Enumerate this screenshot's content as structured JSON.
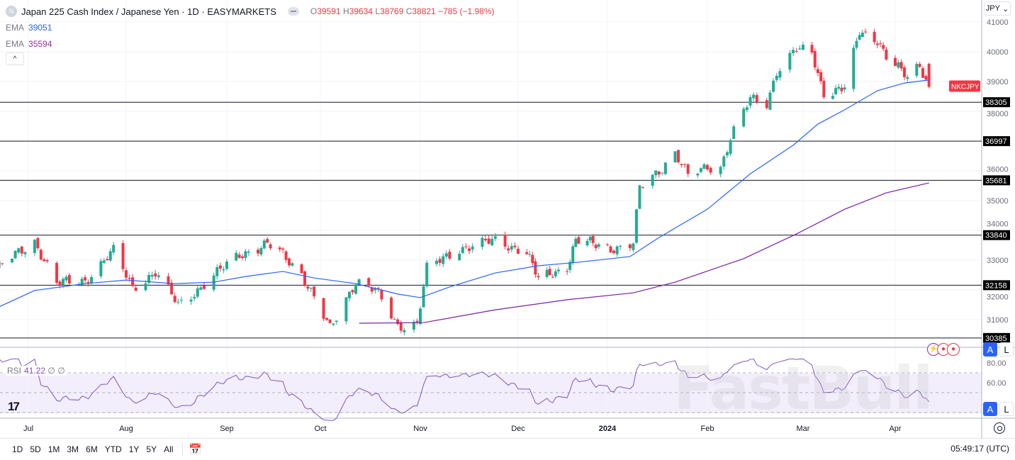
{
  "header": {
    "symbol_badge": "N",
    "title": "Japan 225 Cash Index / Japanese Yen · 1D · EASYMARKETS",
    "ohlc": {
      "o_label": "O",
      "o": "39591",
      "h_label": "H",
      "h": "39634",
      "l_label": "L",
      "l": "38769",
      "c_label": "C",
      "c": "38821",
      "change": "−785 (−1.98%)"
    }
  },
  "indicators": {
    "ema1": {
      "label": "EMA",
      "value": "39051",
      "color": "#2962ff"
    },
    "ema2": {
      "label": "EMA",
      "value": "35594",
      "color": "#7b1fa2"
    },
    "rsi": {
      "label": "RSI",
      "value": "41.22",
      "extra1": "∅",
      "extra2": "∅",
      "color": "#7e57c2"
    }
  },
  "currency_select": "JPY",
  "symbol_tag": "NKCJPY",
  "scale_buttons": {
    "auto": "A",
    "log": "L"
  },
  "watermark": "FastBull",
  "logo": "TV",
  "range_buttons": [
    "1D",
    "5D",
    "1M",
    "3M",
    "6M",
    "YTD",
    "1Y",
    "5Y",
    "All"
  ],
  "clock": "05:49:17 (UTC)",
  "colors": {
    "up": "#22ab94",
    "down": "#f23645",
    "level_line": "#131722"
  },
  "chart_data": {
    "type": "candlestick",
    "symbol": "NKCJPY",
    "interval": "1D",
    "ylim": [
      30300,
      41200
    ],
    "y_ticks": [
      31000,
      32000,
      33000,
      34000,
      35000,
      36000,
      38000,
      39000,
      40000,
      41000
    ],
    "x_ticks": [
      "Jul",
      "Aug",
      "Sep",
      "Oct",
      "Nov",
      "Dec",
      "2024",
      "Feb",
      "Mar",
      "Apr"
    ],
    "grid": true,
    "last_candle": {
      "open": 39591,
      "high": 39634,
      "low": 38769,
      "close": 38821
    },
    "close_path": [
      [
        "2023-06-21",
        32690
      ],
      [
        "2023-07-03",
        33640
      ],
      [
        "2023-07-10",
        32200
      ],
      [
        "2023-07-19",
        32330
      ],
      [
        "2023-07-28",
        33290
      ],
      [
        "2023-08-03",
        32100
      ],
      [
        "2023-08-10",
        32570
      ],
      [
        "2023-08-17",
        31500
      ],
      [
        "2023-08-24",
        32100
      ],
      [
        "2023-09-05",
        33200
      ],
      [
        "2023-09-14",
        33520
      ],
      [
        "2023-09-19",
        33170
      ],
      [
        "2023-09-25",
        32570
      ],
      [
        "2023-10-04",
        30670
      ],
      [
        "2023-10-12",
        32330
      ],
      [
        "2023-10-18",
        31980
      ],
      [
        "2023-10-25",
        30790
      ],
      [
        "2023-10-31",
        30900
      ],
      [
        "2023-11-03",
        32690
      ],
      [
        "2023-11-13",
        33400
      ],
      [
        "2023-11-24",
        33640
      ],
      [
        "2023-12-04",
        33290
      ],
      [
        "2023-12-08",
        32330
      ],
      [
        "2023-12-18",
        32800
      ],
      [
        "2023-12-21",
        33640
      ],
      [
        "2024-01-04",
        33400
      ],
      [
        "2024-01-09",
        33520
      ],
      [
        "2024-01-11",
        35430
      ],
      [
        "2024-01-17",
        36020
      ],
      [
        "2024-01-22",
        36620
      ],
      [
        "2024-01-26",
        35790
      ],
      [
        "2024-02-01",
        36140
      ],
      [
        "2024-02-05",
        36140
      ],
      [
        "2024-02-08",
        37100
      ],
      [
        "2024-02-14",
        38400
      ],
      [
        "2024-02-19",
        38290
      ],
      [
        "2024-02-22",
        39360
      ],
      [
        "2024-02-28",
        40070
      ],
      [
        "2024-03-04",
        39950
      ],
      [
        "2024-03-08",
        38640
      ],
      [
        "2024-03-15",
        38760
      ],
      [
        "2024-03-20",
        40670
      ],
      [
        "2024-03-26",
        40430
      ],
      [
        "2024-03-29",
        39830
      ],
      [
        "2024-04-05",
        39120
      ],
      [
        "2024-04-09",
        39600
      ],
      [
        "2024-04-12",
        38821
      ]
    ],
    "ema_fast": [
      [
        "2023-06-21",
        31380
      ],
      [
        "2023-07-03",
        31980
      ],
      [
        "2023-07-19",
        32210
      ],
      [
        "2023-08-01",
        32330
      ],
      [
        "2023-08-16",
        32210
      ],
      [
        "2023-08-28",
        32260
      ],
      [
        "2023-09-07",
        32450
      ],
      [
        "2023-09-19",
        32620
      ],
      [
        "2023-09-29",
        32400
      ],
      [
        "2023-10-12",
        32210
      ],
      [
        "2023-10-25",
        31860
      ],
      [
        "2023-11-01",
        31740
      ],
      [
        "2023-11-10",
        32100
      ],
      [
        "2023-11-24",
        32570
      ],
      [
        "2023-12-08",
        32810
      ],
      [
        "2023-12-22",
        32930
      ],
      [
        "2024-01-08",
        33120
      ],
      [
        "2024-01-17",
        33760
      ],
      [
        "2024-02-01",
        34710
      ],
      [
        "2024-02-14",
        35900
      ],
      [
        "2024-02-27",
        36860
      ],
      [
        "2024-03-06",
        37570
      ],
      [
        "2024-03-15",
        38050
      ],
      [
        "2024-03-26",
        38690
      ],
      [
        "2024-04-04",
        38950
      ],
      [
        "2024-04-12",
        39051
      ]
    ],
    "ema_slow": [
      [
        "2023-10-13",
        30880
      ],
      [
        "2023-11-02",
        30900
      ],
      [
        "2023-11-24",
        31330
      ],
      [
        "2023-12-18",
        31670
      ],
      [
        "2024-01-09",
        31900
      ],
      [
        "2024-01-22",
        32260
      ],
      [
        "2024-02-12",
        33050
      ],
      [
        "2024-02-28",
        33880
      ],
      [
        "2024-03-15",
        34710
      ],
      [
        "2024-03-29",
        35260
      ],
      [
        "2024-04-12",
        35594
      ]
    ],
    "levels": [
      38305,
      36997,
      35681,
      33840,
      32158,
      30385
    ],
    "rsi": {
      "current": 41.22,
      "ylim": [
        20,
        85
      ],
      "ticks": [
        "80.00",
        "60.00"
      ],
      "bands": [
        70,
        50,
        30
      ]
    }
  }
}
